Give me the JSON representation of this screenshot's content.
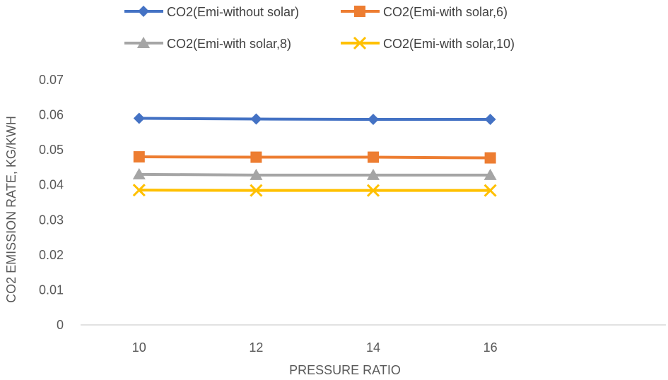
{
  "chart_data": {
    "type": "line",
    "title": "",
    "xlabel": "PRESSURE RATIO",
    "ylabel": "CO2 EMISSION RATE, KG/KWH",
    "categories": [
      "10",
      "12",
      "14",
      "16"
    ],
    "ylim": [
      0,
      0.07
    ],
    "yticks": [
      "0",
      "0.01",
      "0.02",
      "0.03",
      "0.04",
      "0.05",
      "0.06",
      "0.07"
    ],
    "grid": false,
    "legend_position": "top",
    "series": [
      {
        "name": "CO2(Emi-without solar)",
        "values": [
          0.059,
          0.0588,
          0.0587,
          0.0587
        ],
        "color": "#4472C4",
        "marker": "diamond"
      },
      {
        "name": "CO2(Emi-with solar,6)",
        "values": [
          0.048,
          0.0479,
          0.0479,
          0.0477
        ],
        "color": "#ED7D31",
        "marker": "square"
      },
      {
        "name": "CO2(Emi-with solar,8)",
        "values": [
          0.043,
          0.0428,
          0.0428,
          0.0428
        ],
        "color": "#A5A5A5",
        "marker": "triangle"
      },
      {
        "name": "CO2(Emi-with solar,10)",
        "values": [
          0.0385,
          0.0384,
          0.0384,
          0.0384
        ],
        "color": "#FFC000",
        "marker": "x"
      }
    ]
  }
}
